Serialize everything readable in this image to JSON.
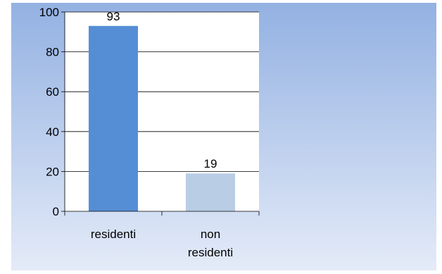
{
  "chart_data": {
    "type": "bar",
    "title": "",
    "xlabel": "",
    "ylabel": "",
    "categories": [
      [
        "residenti"
      ],
      [
        "non",
        "residenti"
      ]
    ],
    "values": [
      93,
      19
    ],
    "data_labels": [
      "93",
      "19"
    ],
    "ylim": [
      0,
      100
    ],
    "yticks": [
      0,
      20,
      40,
      60,
      80,
      100
    ],
    "ytick_labels": [
      "0",
      "20",
      "40",
      "60",
      "80",
      "100"
    ],
    "grid": true,
    "legend": "none"
  },
  "colors": {
    "background_top": "#93b1e2",
    "background_bottom": "#e4ebf8",
    "plot_area": "#ffffff",
    "bars": [
      "#558ed5",
      "#b9cde5"
    ],
    "gridline": "#000000"
  }
}
